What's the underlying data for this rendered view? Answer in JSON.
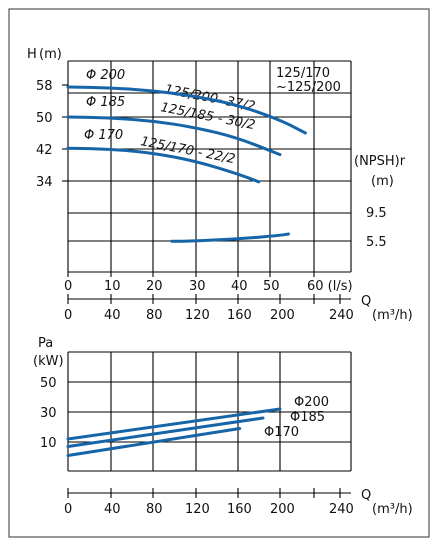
{
  "chart_data": [
    {
      "type": "line",
      "panel": "head_npsh",
      "model_box": [
        "125/170",
        "~125/200"
      ],
      "y_label": [
        "H",
        "(m)"
      ],
      "y_ticks": [
        "58",
        "50",
        "42",
        "34"
      ],
      "npsh_label": [
        "(NPSH)r",
        "(m)"
      ],
      "npsh_ticks": [
        "9.5",
        "5.5"
      ],
      "x_ticks_ls": [
        "0",
        "10",
        "20",
        "30",
        "40",
        "50",
        "60 (l/s)"
      ],
      "x_ticks_m3h": [
        "0",
        "40",
        "80",
        "120",
        "160",
        "200",
        "240"
      ],
      "q_label": "Q",
      "q_unit": "(m³/h)",
      "xlim_ls": [
        0,
        65
      ],
      "ylim_m": [
        26,
        66
      ],
      "series": [
        {
          "name": "125/200- 37/2",
          "impeller_label": "Φ 200",
          "color": "#1565a8",
          "x": [
            0,
            10,
            20,
            30,
            40,
            50,
            56
          ],
          "y": [
            57.5,
            57.3,
            56.6,
            55.2,
            53.0,
            49.3,
            46.0
          ]
        },
        {
          "name": "125/185 - 30/2",
          "impeller_label": "Φ 185",
          "color": "#1565a8",
          "x": [
            0,
            10,
            20,
            30,
            40,
            50
          ],
          "y": [
            50.0,
            49.8,
            49.0,
            47.4,
            44.8,
            40.6
          ]
        },
        {
          "name": "125/170 - 22/2",
          "impeller_label": "Φ 170",
          "color": "#1565a8",
          "x": [
            0,
            10,
            20,
            30,
            40,
            45
          ],
          "y": [
            42.2,
            42.0,
            41.0,
            39.0,
            35.8,
            33.8
          ]
        },
        {
          "name": "NPSHr",
          "color": "#1565a8",
          "x": [
            24.5,
            30,
            40,
            50,
            52
          ],
          "npsh_y": [
            5.45,
            5.5,
            5.8,
            6.3,
            6.5
          ]
        }
      ]
    },
    {
      "type": "line",
      "panel": "power",
      "y_label": [
        "Pa",
        "(kW)"
      ],
      "y_ticks": [
        "50",
        "30",
        "10"
      ],
      "x_ticks_m3h": [
        "0",
        "40",
        "80",
        "120",
        "160",
        "200",
        "240"
      ],
      "q_label": "Q",
      "q_unit": "(m³/h)",
      "xlim_m3h": [
        0,
        250
      ],
      "ylim_kw": [
        -10,
        70
      ],
      "series": [
        {
          "name": "Φ200",
          "color": "#1565a8",
          "x": [
            0,
            200
          ],
          "y": [
            12,
            32
          ]
        },
        {
          "name": "Φ185",
          "color": "#1565a8",
          "x": [
            0,
            184
          ],
          "y": [
            7,
            26
          ]
        },
        {
          "name": "Φ170",
          "color": "#1565a8",
          "x": [
            0,
            162
          ],
          "y": [
            1,
            19
          ]
        }
      ]
    }
  ]
}
